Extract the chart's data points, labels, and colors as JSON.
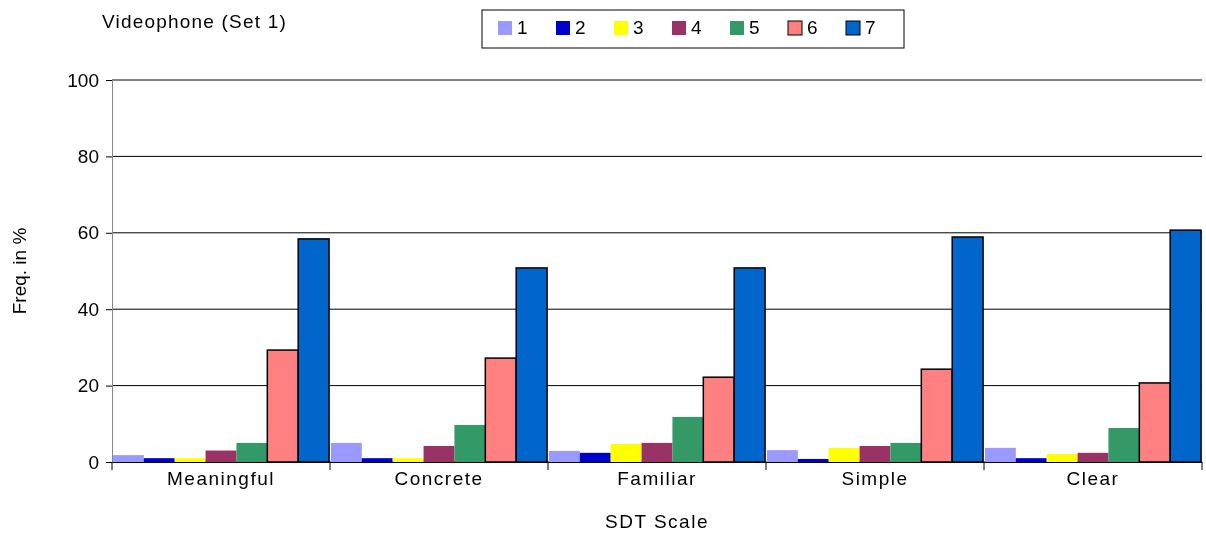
{
  "chart_data": {
    "type": "bar",
    "title": "Videophone (Set 1)",
    "xlabel": "SDT Scale",
    "ylabel": "Freq. in %",
    "categories": [
      "Meaningful",
      "Concrete",
      "Familiar",
      "Simple",
      "Clear"
    ],
    "series": [
      {
        "name": "1",
        "color": "#9999ff",
        "values": [
          1.8,
          5,
          2.9,
          3.1,
          3.7
        ]
      },
      {
        "name": "2",
        "color": "#0000cc",
        "values": [
          1,
          1,
          2.4,
          0.8,
          1
        ]
      },
      {
        "name": "3",
        "color": "#ffff00",
        "values": [
          1,
          1,
          4.7,
          3.7,
          2.1
        ]
      },
      {
        "name": "4",
        "color": "#993366",
        "values": [
          3,
          4.2,
          5,
          4.2,
          2.4
        ]
      },
      {
        "name": "5",
        "color": "#339966",
        "values": [
          5,
          9.7,
          11.8,
          5,
          8.9
        ]
      },
      {
        "name": "6",
        "color": "#ff8080",
        "values": [
          29.3,
          27.2,
          22.2,
          24.3,
          20.7
        ]
      },
      {
        "name": "7",
        "color": "#0066cc",
        "values": [
          58.4,
          50.8,
          50.8,
          58.9,
          60.7
        ]
      }
    ],
    "ylim": [
      0,
      100
    ],
    "yticks": [
      0,
      20,
      40,
      60,
      80,
      100
    ],
    "grid": "y",
    "legend": "top"
  }
}
